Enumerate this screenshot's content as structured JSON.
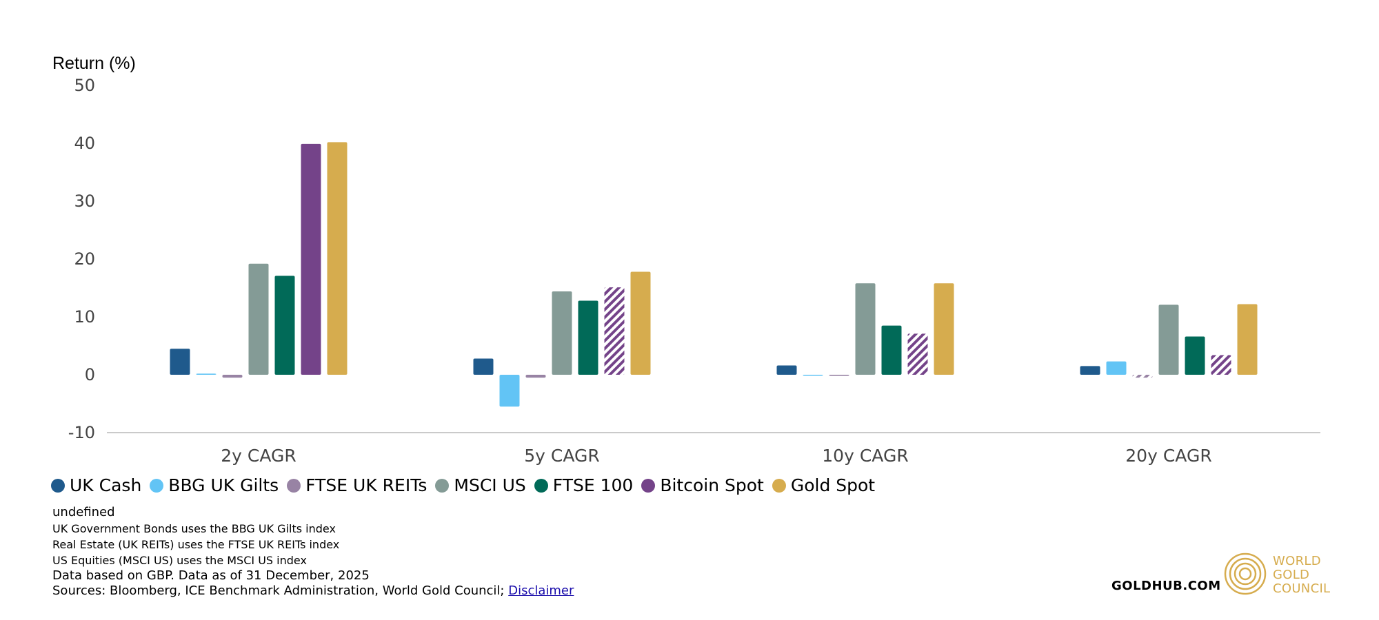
{
  "chart_data": {
    "type": "bar",
    "ylabel": "Return (%)",
    "ylim": [
      -10,
      50
    ],
    "yticks": [
      -10,
      0,
      10,
      20,
      30,
      40,
      50
    ],
    "categories": [
      "2y CAGR",
      "5y CAGR",
      "10y CAGR",
      "20y CAGR"
    ],
    "series": [
      {
        "name": "UK Cash",
        "color": "#1f5a8c",
        "values": [
          4.5,
          2.8,
          1.6,
          1.5
        ],
        "hatched": [
          false,
          false,
          false,
          false
        ]
      },
      {
        "name": "BBG UK Gilts",
        "color": "#62c4f5",
        "values": [
          0.2,
          -5.5,
          -0.1,
          2.3
        ],
        "hatched": [
          false,
          false,
          false,
          false
        ]
      },
      {
        "name": "FTSE UK REITs",
        "color": "#9883a4",
        "values": [
          -0.5,
          -0.5,
          -0.2,
          -0.5
        ],
        "hatched": [
          false,
          false,
          false,
          true
        ]
      },
      {
        "name": "MSCI US",
        "color": "#849b96",
        "values": [
          19.2,
          14.4,
          15.8,
          12.1
        ],
        "hatched": [
          false,
          false,
          false,
          false
        ]
      },
      {
        "name": "FTSE 100",
        "color": "#016a58",
        "values": [
          17.1,
          12.8,
          8.5,
          6.6
        ],
        "hatched": [
          false,
          false,
          false,
          false
        ]
      },
      {
        "name": "Bitcoin Spot",
        "color": "#744389",
        "values": [
          39.9,
          15.1,
          7.1,
          3.4
        ],
        "hatched": [
          false,
          true,
          true,
          true
        ]
      },
      {
        "name": "Gold Spot",
        "color": "#d6ac4e",
        "values": [
          40.2,
          17.8,
          15.8,
          12.2
        ],
        "hatched": [
          false,
          false,
          false,
          false
        ]
      }
    ],
    "legend_position": "bottom-left",
    "grid": false
  },
  "notes": {
    "first": "undefined",
    "lines": [
      "UK Government Bonds uses the BBG UK Gilts index",
      "Real Estate (UK REITs) uses the FTSE UK REITs index",
      "US Equities (MSCI US) uses the MSCI US index"
    ],
    "data_basis": "Data based on GBP. Data as of 31 December, 2025",
    "sources": "Sources: Bloomberg, ICE Benchmark Administration, World Gold Council; ",
    "disclaimer_label": "Disclaimer"
  },
  "branding": {
    "goldhub": "GOLDHUB.COM",
    "wgc_line1": "WORLD",
    "wgc_line2": "GOLD",
    "wgc_line3": "COUNCIL",
    "wgc_color": "#d6ac4e"
  }
}
